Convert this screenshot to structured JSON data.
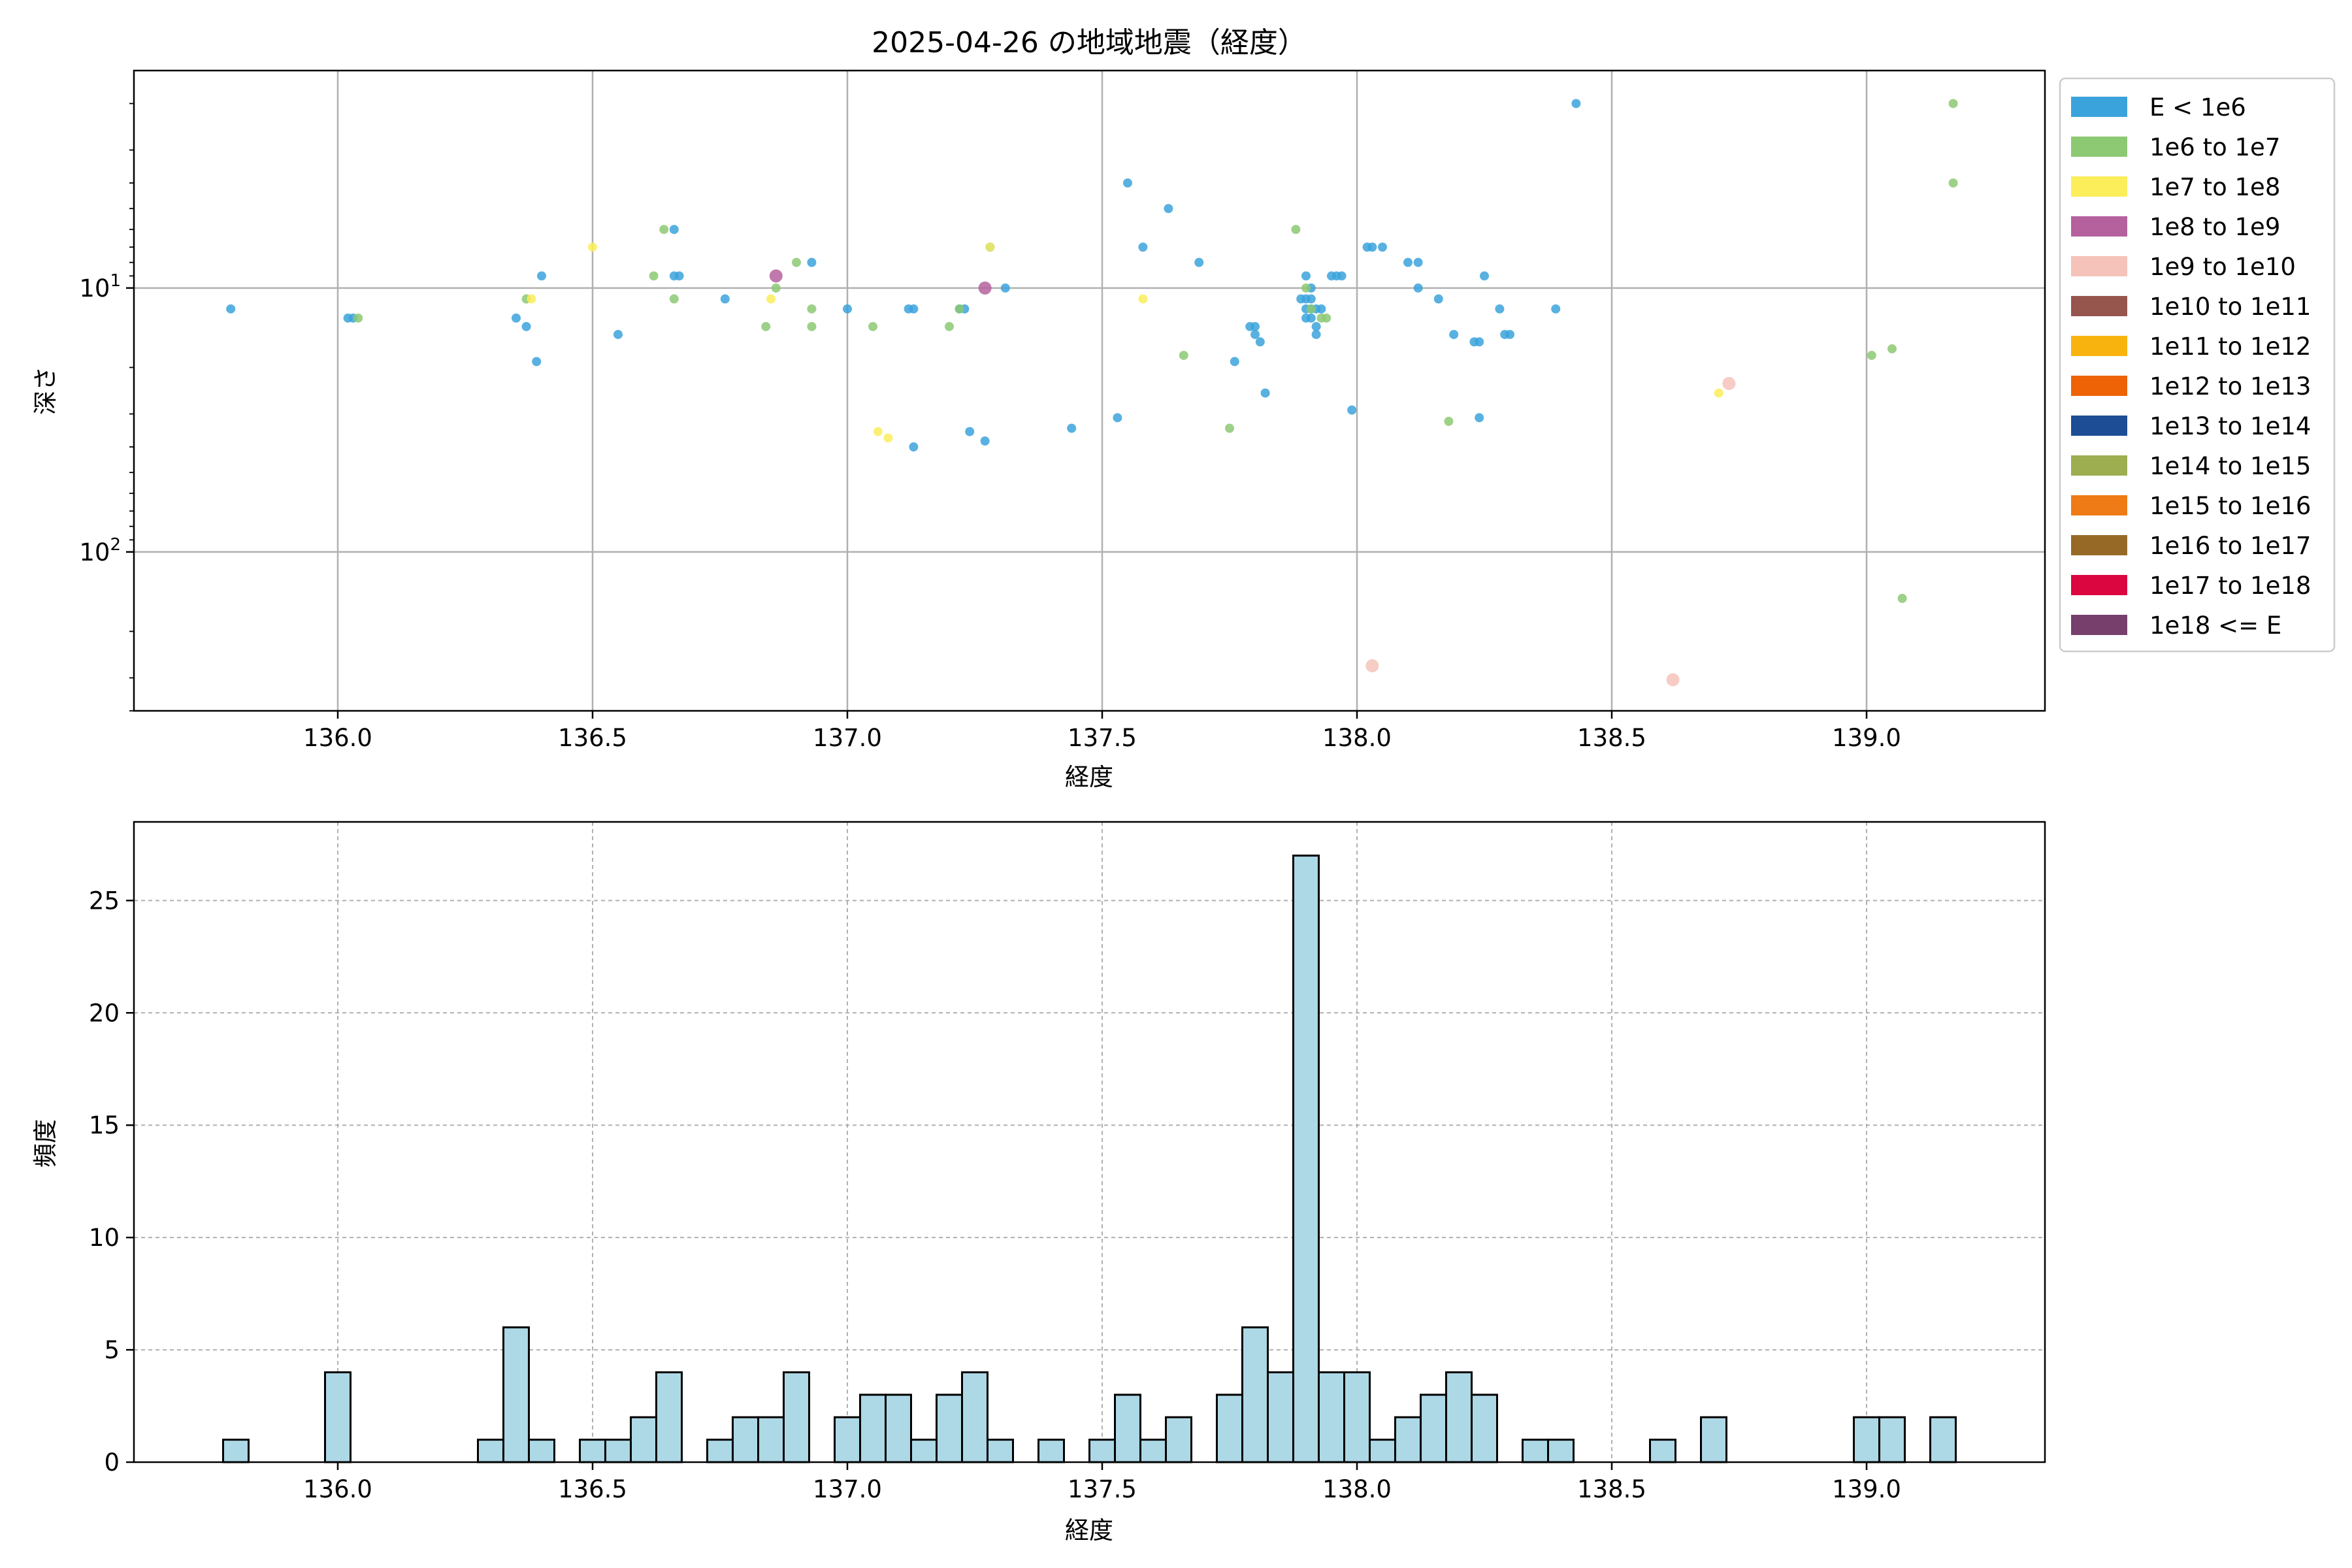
{
  "chart_data": [
    {
      "type": "scatter",
      "title": "2025-04-26 の地域地震（経度）",
      "xlabel": "経度",
      "ylabel": "深さ",
      "xlim": [
        135.6,
        139.35
      ],
      "ylim": [
        400,
        1.5
      ],
      "y_scale": "log",
      "y_inverted": true,
      "grid": true,
      "legend_position": "outside-right",
      "x_ticks": [
        136.0,
        136.5,
        137.0,
        137.5,
        138.0,
        138.5,
        139.0
      ],
      "x_tick_labels": [
        "136.0",
        "136.5",
        "137.0",
        "137.5",
        "138.0",
        "138.5",
        "139.0"
      ],
      "y_ticks": [
        10,
        100
      ],
      "y_tick_labels": [
        [
          "10",
          "1"
        ],
        [
          "10",
          "2"
        ]
      ],
      "legend": [
        {
          "label": "E < 1e6",
          "color": "#3ba3dc"
        },
        {
          "label": "1e6 to 1e7",
          "color": "#8dc973"
        },
        {
          "label": "1e7 to 1e8",
          "color": "#fced5b"
        },
        {
          "label": "1e8 to 1e9",
          "color": "#b5619d"
        },
        {
          "label": "1e9 to 1e10",
          "color": "#f5c3ba"
        },
        {
          "label": "1e10 to 1e11",
          "color": "#96554d"
        },
        {
          "label": "1e11 to 1e12",
          "color": "#f8b30e"
        },
        {
          "label": "1e12 to 1e13",
          "color": "#ed6306"
        },
        {
          "label": "1e13 to 1e14",
          "color": "#1d4d94"
        },
        {
          "label": "1e14 to 1e15",
          "color": "#9cae4f"
        },
        {
          "label": "1e15 to 1e16",
          "color": "#ee7b15"
        },
        {
          "label": "1e16 to 1e17",
          "color": "#966a26"
        },
        {
          "label": "1e17 to 1e18",
          "color": "#db0640"
        },
        {
          "label": "1e18 <= E",
          "color": "#773f6c"
        }
      ],
      "series": [
        {
          "name": "E < 1e6",
          "points": [
            [
              135.79,
              12
            ],
            [
              136.02,
              13
            ],
            [
              136.03,
              13
            ],
            [
              136.35,
              13
            ],
            [
              136.37,
              14
            ],
            [
              136.39,
              19
            ],
            [
              136.4,
              9
            ],
            [
              136.55,
              15
            ],
            [
              136.66,
              6
            ],
            [
              136.67,
              9
            ],
            [
              136.66,
              9
            ],
            [
              136.76,
              11
            ],
            [
              136.93,
              8
            ],
            [
              137.0,
              12
            ],
            [
              137.12,
              12
            ],
            [
              137.13,
              12
            ],
            [
              137.13,
              40
            ],
            [
              137.22,
              12
            ],
            [
              137.23,
              12
            ],
            [
              137.24,
              35
            ],
            [
              137.27,
              38
            ],
            [
              137.28,
              7
            ],
            [
              137.31,
              10
            ],
            [
              137.44,
              34
            ],
            [
              137.53,
              31
            ],
            [
              137.55,
              4
            ],
            [
              137.58,
              7
            ],
            [
              137.63,
              5
            ],
            [
              137.69,
              8
            ],
            [
              137.76,
              19
            ],
            [
              137.79,
              14
            ],
            [
              137.8,
              14
            ],
            [
              137.8,
              15
            ],
            [
              137.81,
              16
            ],
            [
              137.82,
              25
            ],
            [
              137.89,
              11
            ],
            [
              137.9,
              9
            ],
            [
              137.9,
              11
            ],
            [
              137.9,
              12
            ],
            [
              137.9,
              13
            ],
            [
              137.91,
              10
            ],
            [
              137.91,
              11
            ],
            [
              137.91,
              12
            ],
            [
              137.91,
              13
            ],
            [
              137.92,
              12
            ],
            [
              137.92,
              14
            ],
            [
              137.92,
              15
            ],
            [
              137.93,
              12
            ],
            [
              137.95,
              9
            ],
            [
              137.96,
              9
            ],
            [
              137.97,
              9
            ],
            [
              137.99,
              29
            ],
            [
              138.02,
              7
            ],
            [
              138.03,
              7
            ],
            [
              138.05,
              7
            ],
            [
              138.1,
              8
            ],
            [
              138.12,
              8
            ],
            [
              138.12,
              10
            ],
            [
              138.16,
              11
            ],
            [
              138.19,
              15
            ],
            [
              138.23,
              16
            ],
            [
              138.24,
              16
            ],
            [
              138.24,
              31
            ],
            [
              138.25,
              9
            ],
            [
              138.28,
              12
            ],
            [
              138.29,
              15
            ],
            [
              138.3,
              15
            ],
            [
              138.39,
              12
            ],
            [
              138.43,
              2
            ]
          ]
        },
        {
          "name": "1e6 to 1e7",
          "points": [
            [
              136.04,
              13
            ],
            [
              136.37,
              11
            ],
            [
              136.62,
              9
            ],
            [
              136.64,
              6
            ],
            [
              136.66,
              11
            ],
            [
              136.84,
              14
            ],
            [
              136.86,
              10
            ],
            [
              136.9,
              8
            ],
            [
              136.93,
              12
            ],
            [
              136.93,
              14
            ],
            [
              137.05,
              14
            ],
            [
              137.2,
              14
            ],
            [
              137.22,
              12
            ],
            [
              137.66,
              18
            ],
            [
              137.75,
              34
            ],
            [
              137.88,
              6
            ],
            [
              137.9,
              10
            ],
            [
              137.91,
              12
            ],
            [
              137.93,
              13
            ],
            [
              137.94,
              13
            ],
            [
              138.18,
              32
            ],
            [
              139.01,
              18
            ],
            [
              139.05,
              17
            ],
            [
              139.07,
              150
            ],
            [
              139.17,
              2
            ],
            [
              139.17,
              4
            ]
          ]
        },
        {
          "name": "1e7 to 1e8",
          "points": [
            [
              136.38,
              11
            ],
            [
              136.5,
              7
            ],
            [
              136.85,
              11
            ],
            [
              137.06,
              35
            ],
            [
              137.08,
              37
            ],
            [
              137.28,
              7
            ],
            [
              137.58,
              11
            ],
            [
              138.71,
              25
            ]
          ]
        },
        {
          "name": "1e8 to 1e9",
          "points": [
            [
              136.86,
              9
            ],
            [
              137.27,
              10
            ]
          ]
        },
        {
          "name": "1e9 to 1e10",
          "points": [
            [
              138.03,
              270
            ],
            [
              138.62,
              305
            ],
            [
              138.73,
              23
            ]
          ]
        }
      ]
    },
    {
      "type": "bar",
      "subtype": "histogram",
      "title": "",
      "xlabel": "経度",
      "ylabel": "頻度",
      "xlim": [
        135.6,
        139.35
      ],
      "ylim": [
        0,
        28.5
      ],
      "grid": true,
      "bar_color": "#add8e6",
      "x_ticks": [
        136.0,
        136.5,
        137.0,
        137.5,
        138.0,
        138.5,
        139.0
      ],
      "x_tick_labels": [
        "136.0",
        "136.5",
        "137.0",
        "137.5",
        "138.0",
        "138.5",
        "139.0"
      ],
      "y_ticks": [
        0,
        5,
        10,
        15,
        20,
        25
      ],
      "y_tick_labels": [
        "0",
        "5",
        "10",
        "15",
        "20",
        "25"
      ],
      "bins": [
        {
          "x0": 135.775,
          "x1": 135.825,
          "count": 1
        },
        {
          "x0": 135.975,
          "x1": 136.025,
          "count": 4
        },
        {
          "x0": 136.275,
          "x1": 136.325,
          "count": 1
        },
        {
          "x0": 136.325,
          "x1": 136.375,
          "count": 6
        },
        {
          "x0": 136.375,
          "x1": 136.425,
          "count": 1
        },
        {
          "x0": 136.475,
          "x1": 136.525,
          "count": 1
        },
        {
          "x0": 136.525,
          "x1": 136.575,
          "count": 1
        },
        {
          "x0": 136.575,
          "x1": 136.625,
          "count": 2
        },
        {
          "x0": 136.625,
          "x1": 136.675,
          "count": 4
        },
        {
          "x0": 136.725,
          "x1": 136.775,
          "count": 1
        },
        {
          "x0": 136.775,
          "x1": 136.825,
          "count": 2
        },
        {
          "x0": 136.825,
          "x1": 136.875,
          "count": 2
        },
        {
          "x0": 136.875,
          "x1": 136.925,
          "count": 4
        },
        {
          "x0": 136.975,
          "x1": 137.025,
          "count": 2
        },
        {
          "x0": 137.025,
          "x1": 137.075,
          "count": 3
        },
        {
          "x0": 137.075,
          "x1": 137.125,
          "count": 3
        },
        {
          "x0": 137.125,
          "x1": 137.175,
          "count": 1
        },
        {
          "x0": 137.175,
          "x1": 137.225,
          "count": 3
        },
        {
          "x0": 137.225,
          "x1": 137.275,
          "count": 4
        },
        {
          "x0": 137.275,
          "x1": 137.325,
          "count": 1
        },
        {
          "x0": 137.375,
          "x1": 137.425,
          "count": 1
        },
        {
          "x0": 137.475,
          "x1": 137.525,
          "count": 1
        },
        {
          "x0": 137.525,
          "x1": 137.575,
          "count": 3
        },
        {
          "x0": 137.575,
          "x1": 137.625,
          "count": 1
        },
        {
          "x0": 137.625,
          "x1": 137.675,
          "count": 2
        },
        {
          "x0": 137.725,
          "x1": 137.775,
          "count": 3
        },
        {
          "x0": 137.775,
          "x1": 137.825,
          "count": 6
        },
        {
          "x0": 137.825,
          "x1": 137.875,
          "count": 4
        },
        {
          "x0": 137.875,
          "x1": 137.925,
          "count": 27
        },
        {
          "x0": 137.925,
          "x1": 137.975,
          "count": 4
        },
        {
          "x0": 137.975,
          "x1": 138.025,
          "count": 4
        },
        {
          "x0": 138.025,
          "x1": 138.075,
          "count": 1
        },
        {
          "x0": 138.075,
          "x1": 138.125,
          "count": 2
        },
        {
          "x0": 138.125,
          "x1": 138.175,
          "count": 3
        },
        {
          "x0": 138.175,
          "x1": 138.225,
          "count": 4
        },
        {
          "x0": 138.225,
          "x1": 138.275,
          "count": 3
        },
        {
          "x0": 138.325,
          "x1": 138.375,
          "count": 1
        },
        {
          "x0": 138.375,
          "x1": 138.425,
          "count": 1
        },
        {
          "x0": 138.575,
          "x1": 138.625,
          "count": 1
        },
        {
          "x0": 138.675,
          "x1": 138.725,
          "count": 2
        },
        {
          "x0": 138.975,
          "x1": 139.025,
          "count": 2
        },
        {
          "x0": 139.025,
          "x1": 139.075,
          "count": 2
        },
        {
          "x0": 139.125,
          "x1": 139.175,
          "count": 2
        }
      ]
    }
  ]
}
